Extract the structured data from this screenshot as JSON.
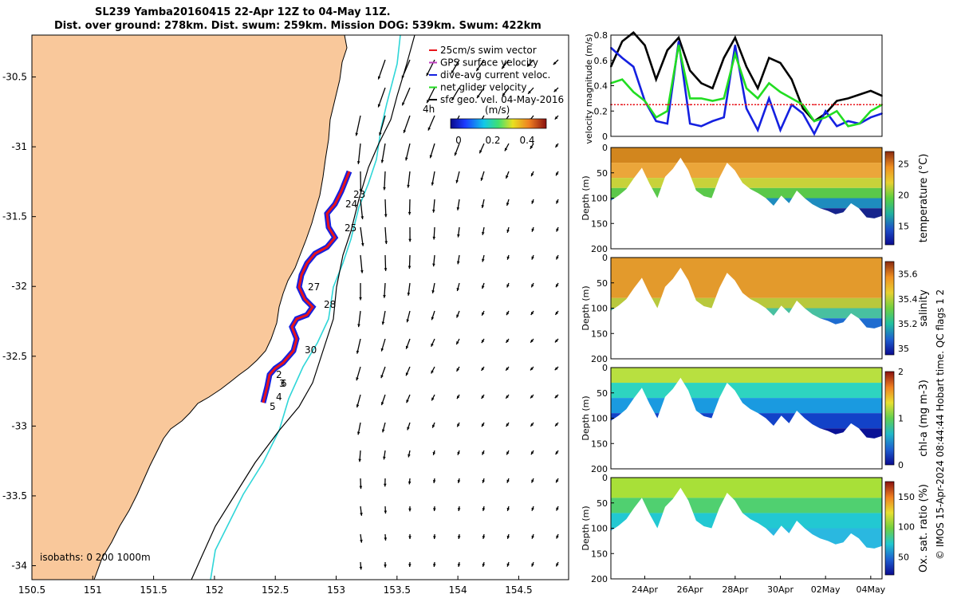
{
  "title": {
    "line1": "SL239 Yamba20160415 22-Apr 12Z to 04-May 11Z.",
    "line2": "Dist. over ground: 278km. Dist. swum: 259km. Mission DOG: 539km. Swum: 422km"
  },
  "colors": {
    "land": "#f9c89b",
    "ocean": "#ffffff",
    "track_red": "#e8141b",
    "track_blue": "#1420e0",
    "cyan_isobath": "#2fd6d8",
    "black": "#000000",
    "net_green": "#22dd22"
  },
  "map": {
    "legend": [
      {
        "label": "25cm/s swim vector",
        "color": "#e8141b"
      },
      {
        "label": "GPS surface velocity",
        "color": "#c040c0"
      },
      {
        "label": "dive-avg current veloc.",
        "color": "#1420e0"
      },
      {
        "label": "net glider velocity",
        "color": "#22dd22"
      },
      {
        "label": "sfc geo. vel. 04-May-2016",
        "color": "#000000"
      }
    ],
    "colorbar_title": "(m/s)",
    "colorbar_ticks": [
      "0",
      "0.2",
      "0.4"
    ],
    "isobath_label": "isobaths: 0   200  1000m",
    "corner_label": "4h",
    "day_labels": [
      "23",
      "24",
      "25",
      "27",
      "28",
      "30",
      "2",
      "3",
      "6",
      "4",
      "5"
    ],
    "xticks": [
      "150.5",
      "151",
      "151.5",
      "152",
      "152.5",
      "153",
      "153.5",
      "154",
      "154.5"
    ],
    "yticks": [
      "-30.5",
      "-31",
      "-31.5",
      "-32",
      "-32.5",
      "-33",
      "-33.5",
      "-34"
    ]
  },
  "chart_data": [
    {
      "type": "line",
      "title": "",
      "ylabel": "velocity magnitude (m/s)",
      "xlabel": "",
      "xlim_days": [
        22.5,
        34.5
      ],
      "ylim": [
        0,
        0.8
      ],
      "yticks": [
        "0",
        "0.2",
        "0.4",
        "0.6",
        "0.8"
      ],
      "x": [
        22.5,
        23.0,
        23.5,
        24.0,
        24.5,
        25.0,
        25.5,
        26.0,
        26.5,
        27.0,
        27.5,
        28.0,
        28.5,
        29.0,
        29.5,
        30.0,
        30.5,
        31.0,
        31.5,
        32.0,
        32.5,
        33.0,
        33.5,
        34.0,
        34.5
      ],
      "series": [
        {
          "name": "sfc geo. vel.",
          "color": "#000000",
          "values": [
            0.55,
            0.75,
            0.82,
            0.72,
            0.45,
            0.68,
            0.78,
            0.52,
            0.42,
            0.38,
            0.62,
            0.78,
            0.55,
            0.38,
            0.62,
            0.58,
            0.45,
            0.22,
            0.12,
            0.18,
            0.28,
            0.3,
            0.33,
            0.36,
            0.32
          ]
        },
        {
          "name": "dive-avg current veloc.",
          "color": "#1420e0",
          "values": [
            0.7,
            0.62,
            0.55,
            0.28,
            0.12,
            0.1,
            0.75,
            0.1,
            0.08,
            0.12,
            0.15,
            0.72,
            0.22,
            0.05,
            0.3,
            0.05,
            0.25,
            0.18,
            0.02,
            0.2,
            0.08,
            0.12,
            0.1,
            0.15,
            0.18
          ]
        },
        {
          "name": "net glider velocity",
          "color": "#22dd22",
          "values": [
            0.42,
            0.45,
            0.35,
            0.28,
            0.15,
            0.2,
            0.72,
            0.3,
            0.3,
            0.28,
            0.3,
            0.65,
            0.38,
            0.3,
            0.42,
            0.35,
            0.3,
            0.25,
            0.12,
            0.15,
            0.2,
            0.08,
            0.1,
            0.2,
            0.25
          ]
        },
        {
          "name": "swim vector",
          "color": "#e8141b",
          "values": [
            0.25,
            0.25,
            0.25,
            0.25,
            0.25,
            0.25,
            0.25,
            0.25,
            0.25,
            0.25,
            0.25,
            0.25,
            0.25,
            0.25,
            0.25,
            0.25,
            0.25,
            0.25,
            0.25,
            0.25,
            0.25,
            0.25,
            0.25,
            0.25,
            0.25
          ]
        }
      ]
    },
    {
      "type": "heatmap",
      "variable": "temperature",
      "ylabel": "Depth (m)",
      "colorbar_label": "temperature (°C)",
      "colorbar_ticks": [
        "15",
        "20",
        "25"
      ],
      "clim": [
        12,
        27
      ],
      "yticks": [
        "0",
        "50",
        "100",
        "150",
        "200"
      ],
      "ylim": [
        0,
        200
      ]
    },
    {
      "type": "heatmap",
      "variable": "salinity",
      "ylabel": "Depth (m)",
      "colorbar_label": "salinity",
      "colorbar_ticks": [
        "35",
        "35.2",
        "35.4",
        "35.6"
      ],
      "clim": [
        34.95,
        35.7
      ],
      "yticks": [
        "0",
        "50",
        "100",
        "150",
        "200"
      ],
      "ylim": [
        0,
        200
      ]
    },
    {
      "type": "heatmap",
      "variable": "chl-a",
      "ylabel": "Depth (m)",
      "colorbar_label": "chl-a (mg m-3)",
      "colorbar_ticks": [
        "0",
        "1",
        "2"
      ],
      "clim": [
        0,
        2
      ],
      "yticks": [
        "0",
        "50",
        "100",
        "150",
        "200"
      ],
      "ylim": [
        0,
        200
      ]
    },
    {
      "type": "heatmap",
      "variable": "oxygen",
      "ylabel": "Depth (m)",
      "colorbar_label": "Ox. sat. ratio (%)",
      "colorbar_ticks": [
        "50",
        "100",
        "150"
      ],
      "clim": [
        20,
        175
      ],
      "yticks": [
        "0",
        "50",
        "100",
        "150",
        "200"
      ],
      "ylim": [
        0,
        200
      ],
      "xticks": [
        "24Apr",
        "26Apr",
        "28Apr",
        "30Apr",
        "02May",
        "04May"
      ]
    }
  ],
  "dive_bottom_depths": [
    105,
    95,
    82,
    60,
    40,
    72,
    100,
    58,
    42,
    20,
    45,
    85,
    96,
    100,
    60,
    30,
    45,
    70,
    82,
    90,
    100,
    115,
    95,
    110,
    85,
    100,
    112,
    120,
    125,
    132,
    128,
    110,
    120,
    138,
    140,
    135
  ],
  "footer": {
    "side_label": "© IMOS 15-Apr-2024 08:44:44 Hobart time. QC flags 1  2"
  }
}
